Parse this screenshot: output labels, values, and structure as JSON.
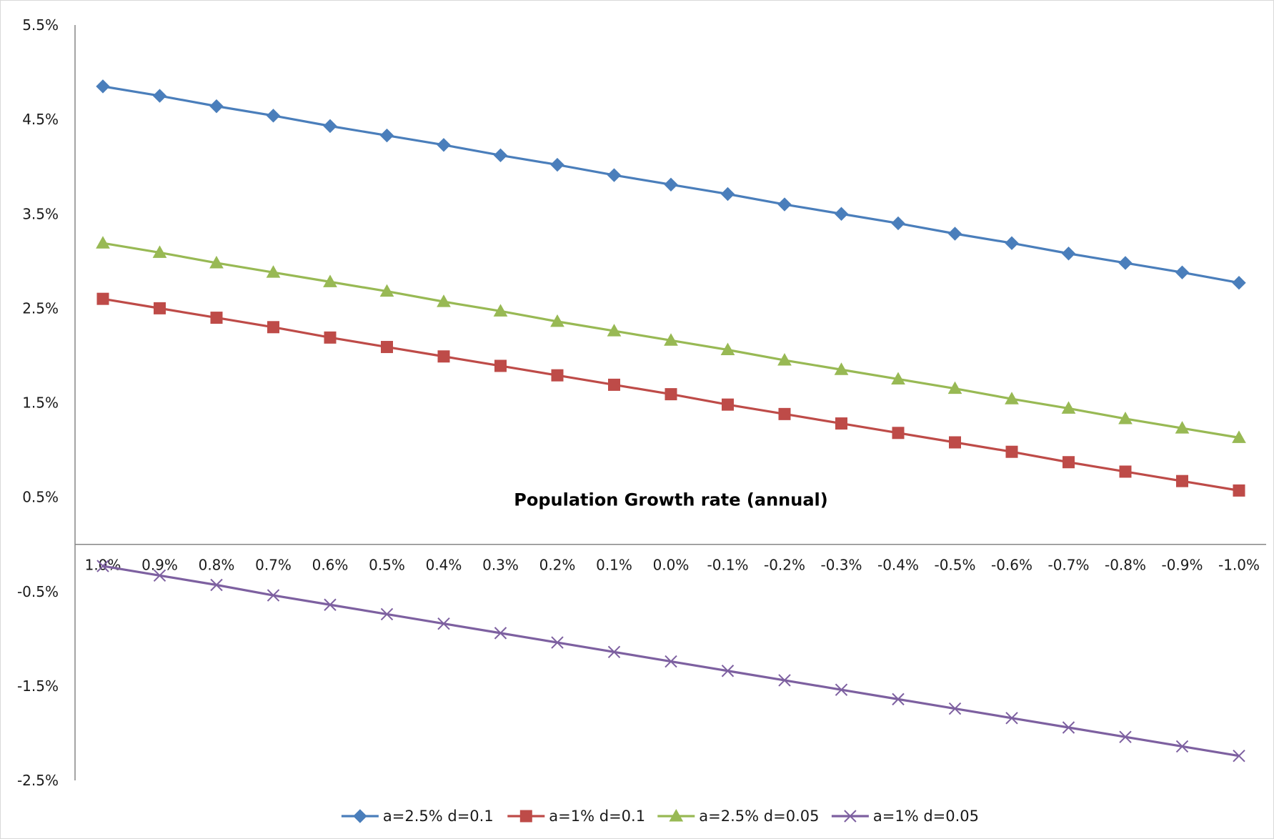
{
  "chart_data": {
    "type": "line",
    "title": "",
    "xlabel": "Population Growth rate (annual)",
    "ylabel": "",
    "x": [
      "1.0%",
      "0.9%",
      "0.8%",
      "0.7%",
      "0.6%",
      "0.5%",
      "0.4%",
      "0.3%",
      "0.2%",
      "0.1%",
      "0.0%",
      "-0.1%",
      "-0.2%",
      "-0.3%",
      "-0.4%",
      "-0.5%",
      "-0.6%",
      "-0.7%",
      "-0.8%",
      "-0.9%",
      "-1.0%"
    ],
    "y_ticks": [
      "5.5%",
      "4.5%",
      "3.5%",
      "2.5%",
      "1.5%",
      "0.5%",
      "-0.5%",
      "-1.5%",
      "-2.5%"
    ],
    "y_tick_values": [
      5.5,
      4.5,
      3.5,
      2.5,
      1.5,
      0.5,
      -0.5,
      -1.5,
      -2.5
    ],
    "ylim": [
      -2.5,
      5.5
    ],
    "grid": false,
    "legend_position": "bottom",
    "series": [
      {
        "name": "a=2.5% d=0.1",
        "color": "#4a7ebb",
        "marker": "diamond",
        "values": [
          4.85,
          4.75,
          4.64,
          4.54,
          4.43,
          4.33,
          4.23,
          4.12,
          4.02,
          3.91,
          3.81,
          3.71,
          3.6,
          3.5,
          3.4,
          3.29,
          3.19,
          3.08,
          2.98,
          2.88,
          2.77
        ]
      },
      {
        "name": "a=1% d=0.1",
        "color": "#be4b48",
        "marker": "square",
        "values": [
          2.6,
          2.5,
          2.4,
          2.3,
          2.19,
          2.09,
          1.99,
          1.89,
          1.79,
          1.69,
          1.59,
          1.48,
          1.38,
          1.28,
          1.18,
          1.08,
          0.98,
          0.87,
          0.77,
          0.67,
          0.57
        ]
      },
      {
        "name": "a=2.5% d=0.05",
        "color": "#98b954",
        "marker": "triangle",
        "values": [
          3.19,
          3.09,
          2.98,
          2.88,
          2.78,
          2.68,
          2.57,
          2.47,
          2.36,
          2.26,
          2.16,
          2.06,
          1.95,
          1.85,
          1.75,
          1.65,
          1.54,
          1.44,
          1.33,
          1.23,
          1.13
        ]
      },
      {
        "name": "a=1% d=0.05",
        "color": "#7d60a0",
        "marker": "x",
        "values": [
          -0.23,
          -0.33,
          -0.43,
          -0.54,
          -0.64,
          -0.74,
          -0.84,
          -0.94,
          -1.04,
          -1.14,
          -1.24,
          -1.34,
          -1.44,
          -1.54,
          -1.64,
          -1.74,
          -1.84,
          -1.94,
          -2.04,
          -2.14,
          -2.24
        ]
      }
    ]
  }
}
